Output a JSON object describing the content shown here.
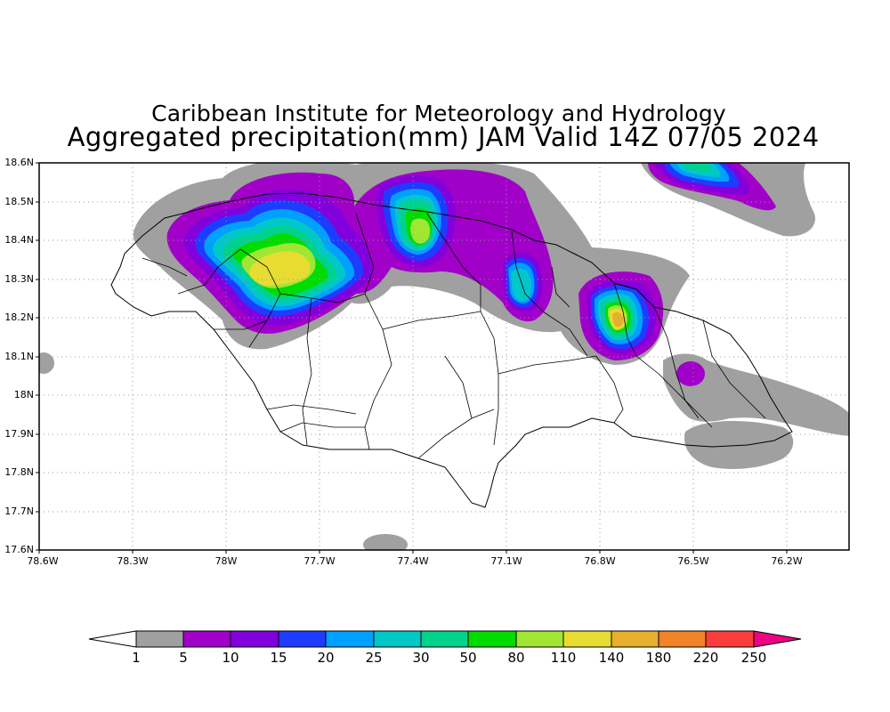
{
  "title": {
    "line1": "Caribbean Institute for Meteorology and Hydrology",
    "line2": "Aggregated precipitation(mm) JAM Valid 14Z 07/05 2024"
  },
  "axes": {
    "lat_labels": [
      "18.6N",
      "18.5N",
      "18.4N",
      "18.3N",
      "18.2N",
      "18.1N",
      "18N",
      "17.9N",
      "17.8N",
      "17.7N",
      "17.6N"
    ],
    "lon_labels": [
      "78.6W",
      "78.3W",
      "78W",
      "77.7W",
      "77.4W",
      "77.1W",
      "76.8W",
      "76.5W",
      "76.2W"
    ],
    "lat_range": [
      17.6,
      18.6
    ],
    "lon_range": [
      -78.6,
      -76.0
    ],
    "grid": "dotted"
  },
  "colorbar": {
    "labels": [
      "1",
      "5",
      "10",
      "15",
      "20",
      "25",
      "30",
      "50",
      "80",
      "110",
      "140",
      "180",
      "220",
      "250"
    ],
    "colors": [
      "#a0a0a0",
      "#a000c8",
      "#8200dc",
      "#1e3cff",
      "#00a0ff",
      "#00c8c8",
      "#00d28c",
      "#00dc00",
      "#a0e632",
      "#e6dc32",
      "#e6af2d",
      "#f08228",
      "#fa3c3c",
      "#f00082"
    ]
  },
  "precip_cells": [
    {
      "lon": -77.75,
      "lat": 18.35,
      "peak_mm": 140
    },
    {
      "lon": -77.38,
      "lat": 18.42,
      "peak_mm": 110
    },
    {
      "lon": -77.05,
      "lat": 18.29,
      "peak_mm": 30
    },
    {
      "lon": -76.75,
      "lat": 18.18,
      "peak_mm": 180
    },
    {
      "lon": -76.47,
      "lat": 18.55,
      "peak_mm": 30
    },
    {
      "lon": -76.47,
      "lat": 18.05,
      "peak_mm": 5
    }
  ]
}
